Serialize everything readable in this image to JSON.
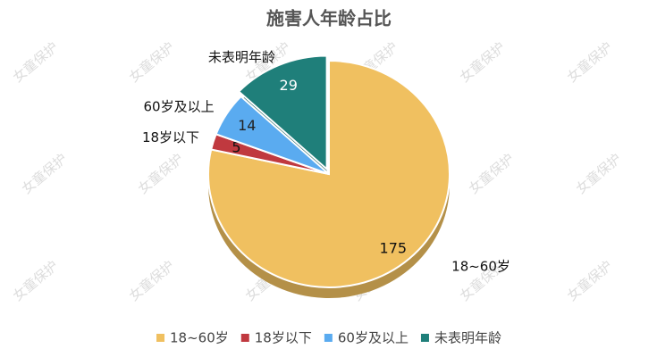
{
  "chart_data": {
    "type": "pie",
    "title": "施害人年龄占比",
    "categories": [
      "18~60岁",
      "18岁以下",
      "60岁及以上",
      "未表明年龄"
    ],
    "values": [
      175,
      5,
      14,
      29
    ],
    "colors": [
      "#f0c060",
      "#c0393f",
      "#5aabf0",
      "#1f7f7a"
    ],
    "legend": "bottom",
    "watermark": "女童保护"
  }
}
